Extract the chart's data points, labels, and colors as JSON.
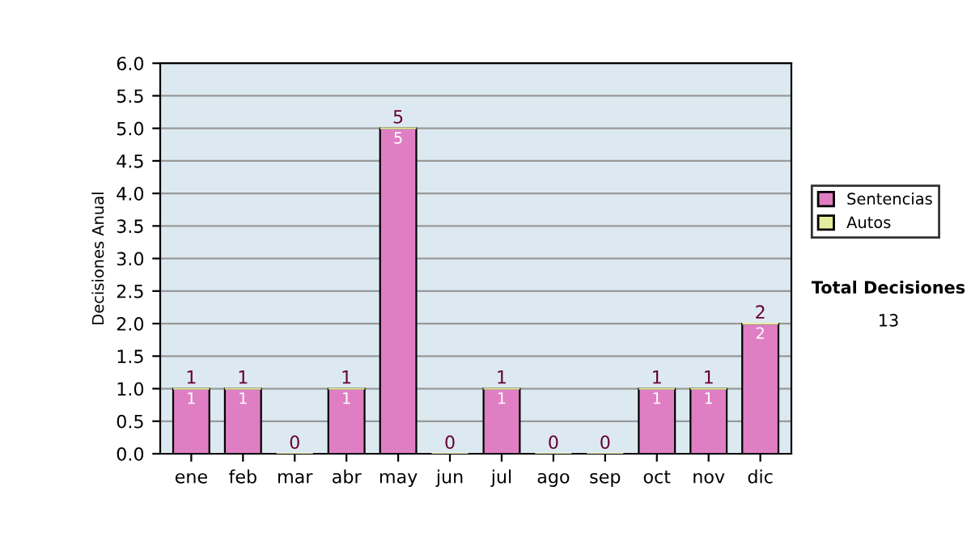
{
  "chart_data": {
    "type": "bar",
    "stacked": true,
    "ylabel": "Decisiones Anual",
    "categories": [
      "ene",
      "feb",
      "mar",
      "abr",
      "may",
      "jun",
      "jul",
      "ago",
      "sep",
      "oct",
      "nov",
      "dic"
    ],
    "series": [
      {
        "name": "Sentencias",
        "color": "#e07ec4",
        "values": [
          1,
          1,
          0,
          1,
          5,
          0,
          1,
          0,
          0,
          1,
          1,
          2
        ],
        "value_labels": [
          "1",
          "1",
          null,
          "1",
          "5",
          null,
          "1",
          null,
          null,
          "1",
          "1",
          "2"
        ]
      },
      {
        "name": "Autos",
        "color": "#e4eca0",
        "values": [
          0,
          0,
          0,
          0,
          0,
          0,
          0,
          0,
          0,
          0,
          0,
          0
        ]
      }
    ],
    "totals": [
      "1",
      "1",
      "0",
      "1",
      "5",
      "0",
      "1",
      "0",
      "0",
      "1",
      "1",
      "2"
    ],
    "ylim": [
      0,
      6
    ],
    "yticks": [
      {
        "value": 0,
        "label": "0.0"
      },
      {
        "value": 0.5,
        "label": "0.5"
      },
      {
        "value": 1,
        "label": "1.0"
      },
      {
        "value": 1.5,
        "label": "1.5"
      },
      {
        "value": 2,
        "label": "2.0"
      },
      {
        "value": 2.5,
        "label": "2.5"
      },
      {
        "value": 3,
        "label": "3.0"
      },
      {
        "value": 3.5,
        "label": "3.5"
      },
      {
        "value": 4,
        "label": "4.0"
      },
      {
        "value": 4.5,
        "label": "4.5"
      },
      {
        "value": 5,
        "label": "5.0"
      },
      {
        "value": 5.5,
        "label": "5.5"
      },
      {
        "value": 6,
        "label": "6.0"
      }
    ],
    "grid": "y",
    "legend": "right",
    "annotations": [
      "Total Decisiones",
      "13"
    ]
  }
}
